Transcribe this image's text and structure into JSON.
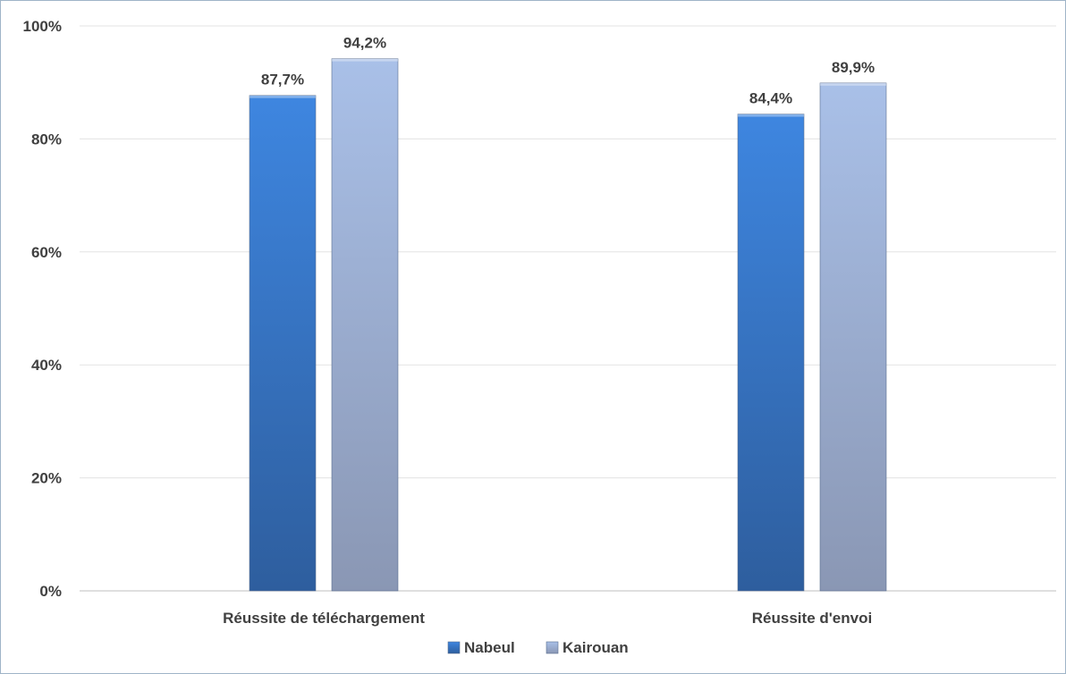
{
  "chart_data": {
    "type": "bar",
    "title": "",
    "xlabel": "",
    "ylabel": "",
    "categories": [
      "Réussite de téléchargement",
      "Réussite d'envoi"
    ],
    "series": [
      {
        "name": "Nabeul",
        "values": [
          87.7,
          84.4
        ],
        "labels": [
          "87,7%",
          "84,4%"
        ],
        "color": "#3b7fd6"
      },
      {
        "name": "Kairouan",
        "values": [
          94.2,
          89.9
        ],
        "labels": [
          "94,2%",
          "89,9%"
        ],
        "color": "#a3b5dc"
      }
    ],
    "ylim": [
      0,
      100
    ],
    "yticks": [
      0,
      20,
      40,
      60,
      80,
      100
    ],
    "ytick_labels": [
      "0%",
      "20%",
      "40%",
      "60%",
      "80%",
      "100%"
    ],
    "grid": true,
    "legend_position": "bottom"
  }
}
